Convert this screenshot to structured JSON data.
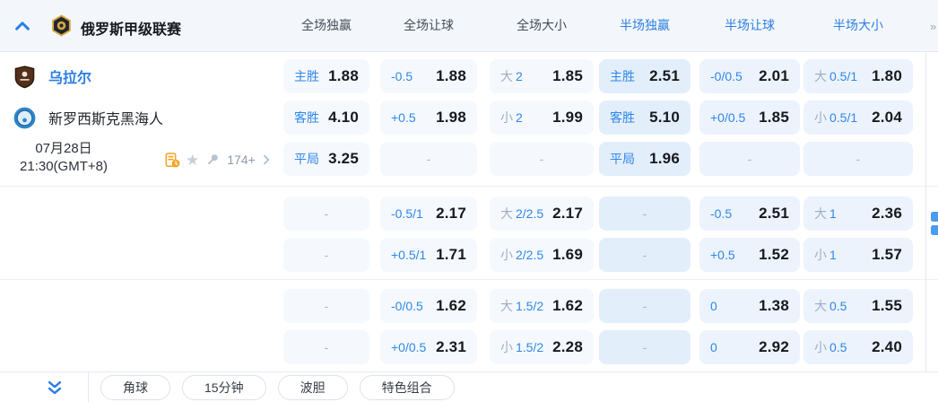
{
  "ui": {
    "dash": "-"
  },
  "colors": {
    "accent_blue": "#2b7de5",
    "odds_label_blue": "#2f87ea",
    "half_win_cell_bg": "#e3eefb",
    "half_cell_bg": "#ecf3fc",
    "full_cell_bg": "#f5f9fd",
    "history_icon_orange": "#f5a425"
  },
  "header": {
    "league_name": "俄罗斯甲级联赛",
    "columns": [
      {
        "label": "全场独赢"
      },
      {
        "label": "全场让球"
      },
      {
        "label": "全场大小"
      },
      {
        "label": "半场独赢"
      },
      {
        "label": "半场让球"
      },
      {
        "label": "半场大小"
      }
    ]
  },
  "match": {
    "home": {
      "name": "乌拉尔"
    },
    "away": {
      "name": "新罗西斯克黑海人"
    },
    "date": "07月28日",
    "time": "21:30(GMT+8)",
    "extra_markets_count": "174+",
    "icons": [
      "odds-history-icon",
      "favorite-star-icon",
      "pin-icon",
      "more-chevron-icon"
    ]
  },
  "odds": {
    "rows": [
      {
        "cells": [
          {
            "label": "主胜",
            "value": "1.88"
          },
          {
            "label": "-0.5",
            "value": "1.88"
          },
          {
            "prefix": "大",
            "label": "2",
            "value": "1.85"
          },
          {
            "label": "主胜",
            "value": "2.51"
          },
          {
            "label": "-0/0.5",
            "value": "2.01"
          },
          {
            "prefix": "大",
            "label": "0.5/1",
            "value": "1.80"
          }
        ]
      },
      {
        "cells": [
          {
            "label": "客胜",
            "value": "4.10"
          },
          {
            "label": "+0.5",
            "value": "1.98"
          },
          {
            "prefix": "小",
            "label": "2",
            "value": "1.99"
          },
          {
            "label": "客胜",
            "value": "5.10"
          },
          {
            "label": "+0/0.5",
            "value": "1.85"
          },
          {
            "prefix": "小",
            "label": "0.5/1",
            "value": "2.04"
          }
        ]
      },
      {
        "cells": [
          {
            "label": "平局",
            "value": "3.25"
          },
          {
            "dash": true
          },
          {
            "dash": true
          },
          {
            "label": "平局",
            "value": "1.96"
          },
          {
            "dash": true
          },
          {
            "dash": true
          }
        ]
      },
      {
        "cells": [
          {
            "dash": true
          },
          {
            "label": "-0.5/1",
            "value": "2.17"
          },
          {
            "prefix": "大",
            "label": "2/2.5",
            "value": "2.17"
          },
          {
            "dash": true
          },
          {
            "label": "-0.5",
            "value": "2.51"
          },
          {
            "prefix": "大",
            "label": "1",
            "value": "2.36"
          }
        ]
      },
      {
        "cells": [
          {
            "dash": true
          },
          {
            "label": "+0.5/1",
            "value": "1.71"
          },
          {
            "prefix": "小",
            "label": "2/2.5",
            "value": "1.69"
          },
          {
            "dash": true
          },
          {
            "label": "+0.5",
            "value": "1.52"
          },
          {
            "prefix": "小",
            "label": "1",
            "value": "1.57"
          }
        ]
      },
      {
        "cells": [
          {
            "dash": true
          },
          {
            "label": "-0/0.5",
            "value": "1.62"
          },
          {
            "prefix": "大",
            "label": "1.5/2",
            "value": "1.62"
          },
          {
            "dash": true
          },
          {
            "label": "0",
            "value": "1.38"
          },
          {
            "prefix": "大",
            "label": "0.5",
            "value": "1.55"
          }
        ]
      },
      {
        "cells": [
          {
            "dash": true
          },
          {
            "label": "+0/0.5",
            "value": "2.31"
          },
          {
            "prefix": "小",
            "label": "1.5/2",
            "value": "2.28"
          },
          {
            "dash": true
          },
          {
            "label": "0",
            "value": "2.92"
          },
          {
            "prefix": "小",
            "label": "0.5",
            "value": "2.40"
          }
        ]
      }
    ]
  },
  "footer": {
    "tabs": [
      {
        "label": "角球"
      },
      {
        "label": "15分钟"
      },
      {
        "label": "波胆"
      },
      {
        "label": "特色组合"
      }
    ]
  }
}
